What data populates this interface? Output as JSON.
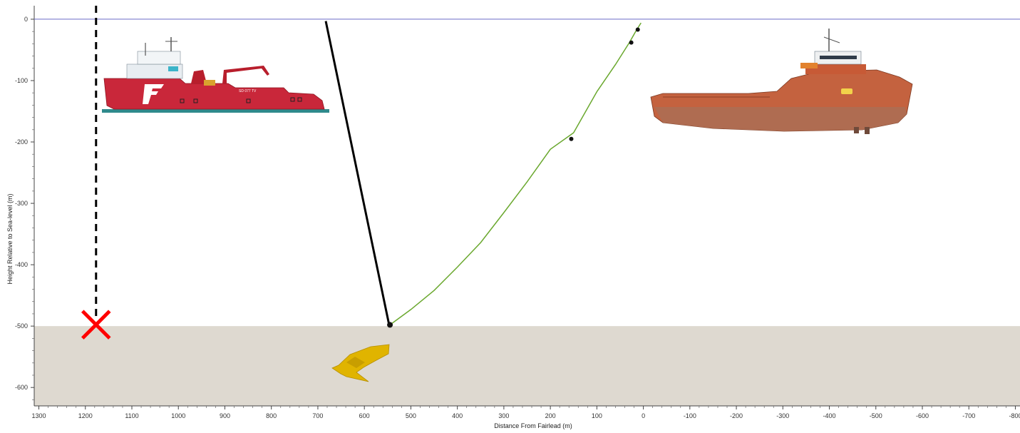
{
  "chart": {
    "xlabel": "Distance From Fairlead (m)",
    "ylabel": "Height Relative to Sea-level (m)",
    "xlim": [
      1310,
      -810
    ],
    "ylim": [
      -630,
      22
    ],
    "x_ticks": [
      1300,
      1200,
      1100,
      1000,
      900,
      800,
      700,
      600,
      500,
      400,
      300,
      200,
      100,
      0,
      -100,
      -200,
      -300,
      -400,
      -500,
      -600,
      -700,
      -800
    ],
    "y_ticks": [
      0,
      -100,
      -200,
      -300,
      -400,
      -500,
      -600
    ],
    "sea_level": 0,
    "seabed_depth": -500
  },
  "chart_data": {
    "type": "line",
    "xlabel": "Distance From Fairlead (m)",
    "ylabel": "Height Relative to Sea-level (m)",
    "grid": false,
    "series": [
      {
        "key": "mooring-line",
        "color": "#6aa82e",
        "x": [
          545,
          500,
          450,
          400,
          350,
          300,
          250,
          200,
          150,
          100,
          60,
          30,
          15,
          5
        ],
        "y": [
          -498,
          -473,
          -442,
          -404,
          -364,
          -315,
          -265,
          -212,
          -185,
          -118,
          -74,
          -38,
          -18,
          -6
        ]
      },
      {
        "key": "work-wire",
        "color": "#000000",
        "x": [
          683,
          547
        ],
        "y": [
          -3,
          -497
        ]
      }
    ],
    "markers": [
      {
        "x": 545,
        "y": -498
      },
      {
        "x": 155,
        "y": -195
      },
      {
        "x": 26,
        "y": -38
      },
      {
        "x": 12,
        "y": -17
      }
    ],
    "target_marker": {
      "x": 1177,
      "y": -500,
      "color": "#ff0000"
    },
    "reference_line": {
      "x": 1177,
      "style": "dashed",
      "color": "#000000"
    }
  },
  "colors": {
    "sea_line": "#6a6ac8",
    "seabed": "#ded9d0",
    "support_vessel_hull": "#c9273a",
    "anchor_handler_hull": "#c4623f",
    "anchor": "#e0b400",
    "deck": "#2f8a8c"
  },
  "vessels": {
    "support_vessel_name": "SD 077 TV"
  }
}
